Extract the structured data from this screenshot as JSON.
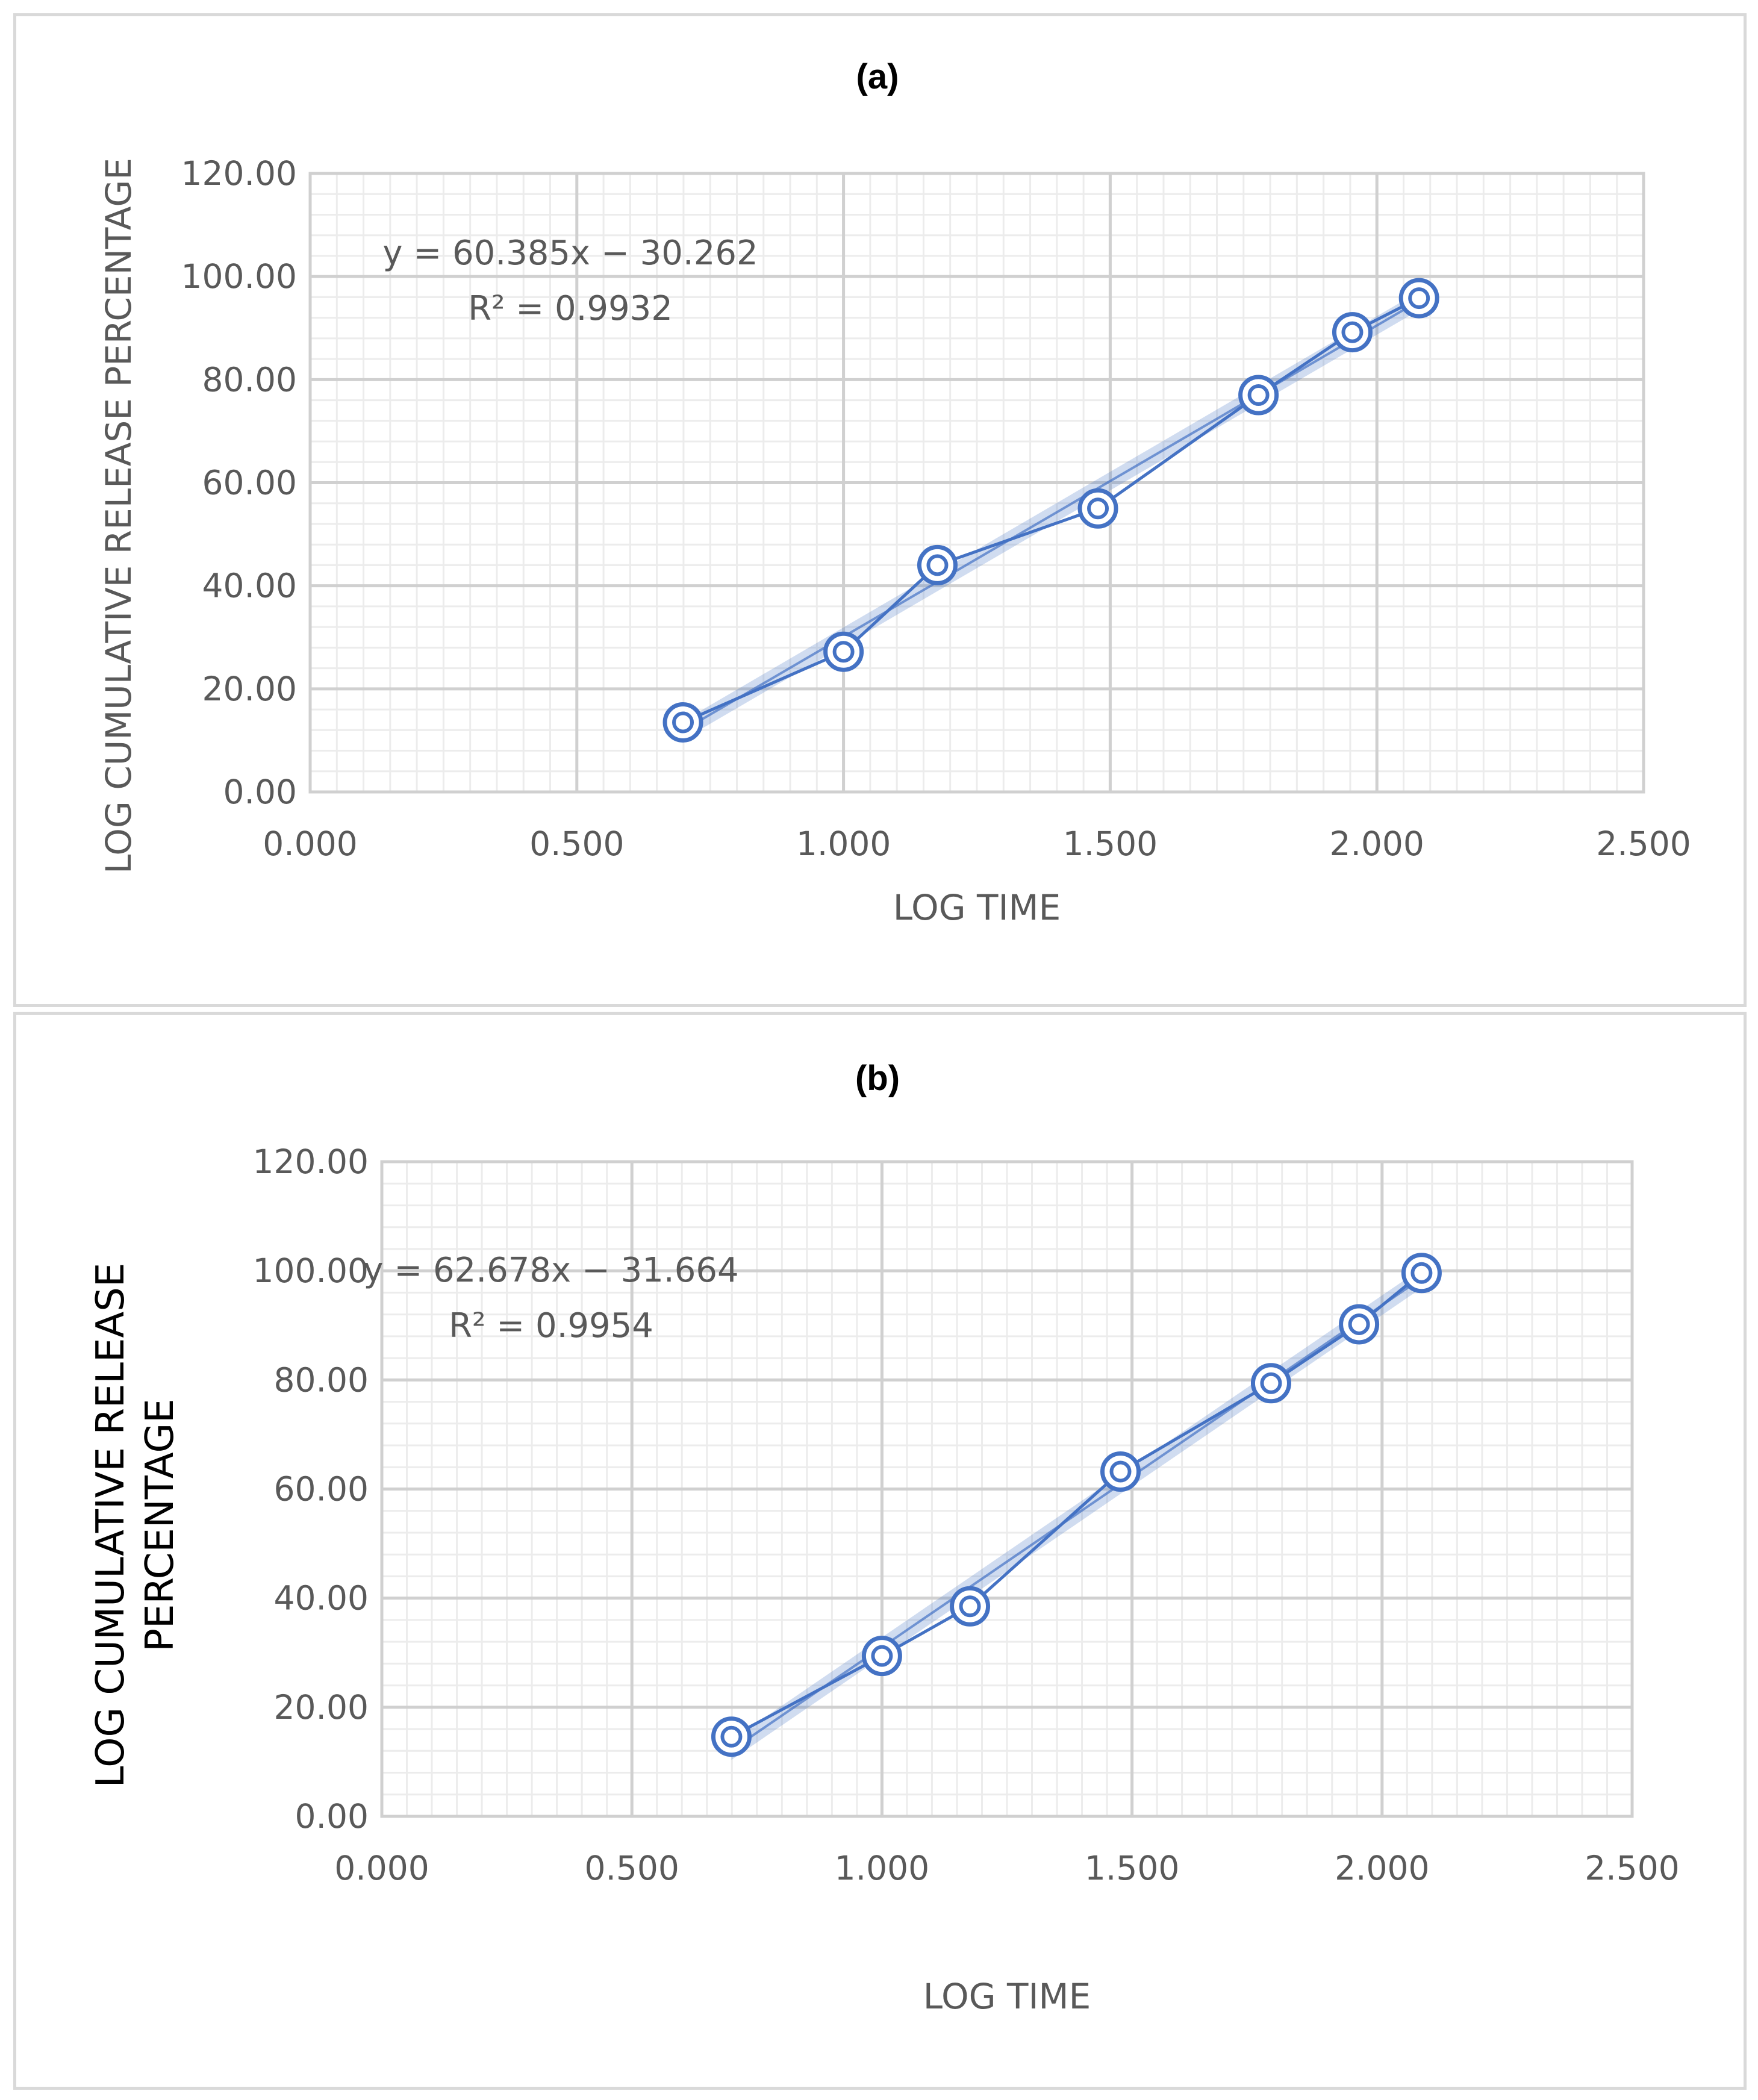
{
  "chart_data": [
    {
      "type": "scatter",
      "title": "(a)",
      "xlabel": "LOG TIME",
      "ylabel": "LOG CUMULATIVE RELEASE PERCENTAGE",
      "xlim": [
        0,
        2.5
      ],
      "ylim": [
        0,
        120
      ],
      "xticks": [
        "0.000",
        "0.500",
        "1.000",
        "1.500",
        "2.000",
        "2.500"
      ],
      "yticks": [
        "0.00",
        "20.00",
        "40.00",
        "60.00",
        "80.00",
        "100.00",
        "120.00"
      ],
      "grid": true,
      "series": [
        {
          "x": [
            0.699,
            1.0,
            1.176,
            1.477,
            1.778,
            1.954,
            2.079
          ],
          "y": [
            13.5,
            27.2,
            44.0,
            55.0,
            77.0,
            89.2,
            95.8
          ]
        }
      ],
      "trendline": {
        "slope": 60.385,
        "intercept": -30.262
      },
      "equation": "y = 60.385x − 30.262",
      "r2": "R² = 0.9932",
      "color": "#4472c4"
    },
    {
      "type": "scatter",
      "title": "(b)",
      "xlabel": "LOG TIME",
      "ylabel_lines": [
        "LOG CUMULATIVE RELEASE",
        "PERCENTAGE"
      ],
      "xlim": [
        0,
        2.5
      ],
      "ylim": [
        0,
        120
      ],
      "xticks": [
        "0.000",
        "0.500",
        "1.000",
        "1.500",
        "2.000",
        "2.500"
      ],
      "yticks": [
        "0.00",
        "20.00",
        "40.00",
        "60.00",
        "80.00",
        "100.00",
        "120.00"
      ],
      "grid": true,
      "series": [
        {
          "x": [
            0.699,
            1.0,
            1.176,
            1.477,
            1.778,
            1.954,
            2.079
          ],
          "y": [
            14.6,
            29.4,
            38.5,
            63.2,
            79.4,
            90.2,
            99.6
          ]
        }
      ],
      "trendline": {
        "slope": 62.678,
        "intercept": -31.664
      },
      "equation": "y = 62.678x − 31.664",
      "r2": "R² = 0.9954",
      "color": "#4472c4"
    }
  ]
}
